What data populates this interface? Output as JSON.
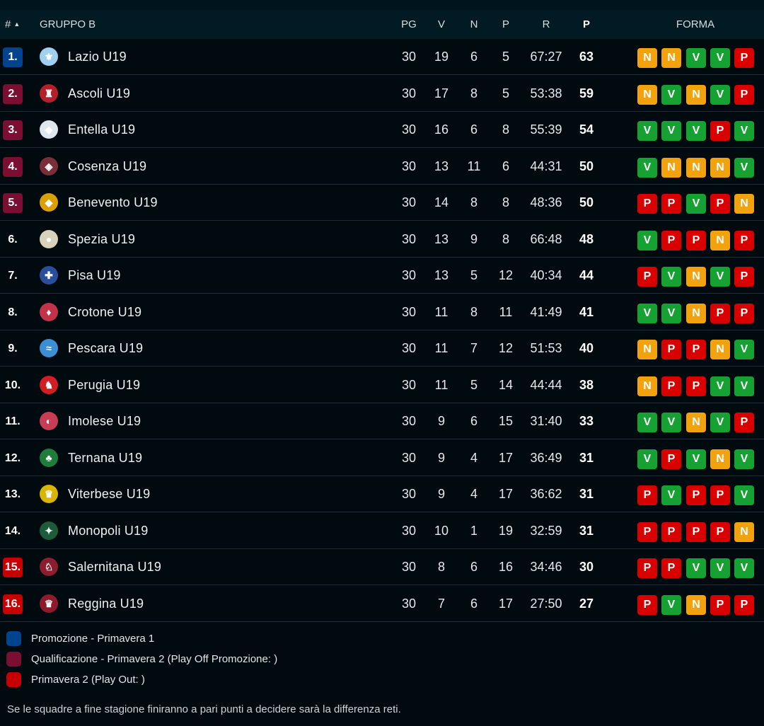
{
  "header": {
    "rank": "#",
    "rank_arrow": "▲",
    "group": "GRUPPO B",
    "cols": [
      "PG",
      "V",
      "N",
      "P",
      "R",
      "P"
    ],
    "form": "FORMA"
  },
  "zone_colors": {
    "promo": "#00448f",
    "qual": "#7a0f33",
    "out": "#c60000",
    "none": "transparent"
  },
  "form_colors": {
    "N": "#f2a20c",
    "V": "#16a133",
    "P": "#d90000"
  },
  "teams": [
    {
      "rank": "1.",
      "zone": "promo",
      "name": "Lazio U19",
      "logo_icon": "lazio-eagle-crest-icon",
      "logo_glyph": "⚜",
      "logo_color": "#9fd0f0",
      "pg": "30",
      "v": "19",
      "n": "6",
      "p": "5",
      "r": "67:27",
      "pts": "63",
      "form": [
        "N",
        "N",
        "V",
        "V",
        "P"
      ]
    },
    {
      "rank": "2.",
      "zone": "qual",
      "name": "Ascoli U19",
      "logo_icon": "ascoli-shield-icon",
      "logo_glyph": "♜",
      "logo_color": "#b3202c",
      "pg": "30",
      "v": "17",
      "n": "8",
      "p": "5",
      "r": "53:38",
      "pts": "59",
      "form": [
        "N",
        "V",
        "N",
        "V",
        "P"
      ]
    },
    {
      "rank": "3.",
      "zone": "qual",
      "name": "Entella U19",
      "logo_icon": "entella-shield-icon",
      "logo_glyph": "◆",
      "logo_color": "#dfe7ef",
      "pg": "30",
      "v": "16",
      "n": "6",
      "p": "8",
      "r": "55:39",
      "pts": "54",
      "form": [
        "V",
        "V",
        "V",
        "P",
        "V"
      ]
    },
    {
      "rank": "4.",
      "zone": "qual",
      "name": "Cosenza U19",
      "logo_icon": "cosenza-shield-icon",
      "logo_glyph": "◈",
      "logo_color": "#7a2e3a",
      "pg": "30",
      "v": "13",
      "n": "11",
      "p": "6",
      "r": "44:31",
      "pts": "50",
      "form": [
        "V",
        "N",
        "N",
        "N",
        "V"
      ]
    },
    {
      "rank": "5.",
      "zone": "qual",
      "name": "Benevento U19",
      "logo_icon": "benevento-shield-icon",
      "logo_glyph": "◆",
      "logo_color": "#d9a000",
      "pg": "30",
      "v": "14",
      "n": "8",
      "p": "8",
      "r": "48:36",
      "pts": "50",
      "form": [
        "P",
        "P",
        "V",
        "P",
        "N"
      ]
    },
    {
      "rank": "6.",
      "zone": "none",
      "name": "Spezia U19",
      "logo_icon": "spezia-round-badge-icon",
      "logo_glyph": "●",
      "logo_color": "#d8d2bd",
      "pg": "30",
      "v": "13",
      "n": "9",
      "p": "8",
      "r": "66:48",
      "pts": "48",
      "form": [
        "V",
        "P",
        "P",
        "N",
        "P"
      ]
    },
    {
      "rank": "7.",
      "zone": "none",
      "name": "Pisa U19",
      "logo_icon": "pisa-shield-icon",
      "logo_glyph": "✚",
      "logo_color": "#2a4f9a",
      "pg": "30",
      "v": "13",
      "n": "5",
      "p": "12",
      "r": "40:34",
      "pts": "44",
      "form": [
        "P",
        "V",
        "N",
        "V",
        "P"
      ]
    },
    {
      "rank": "8.",
      "zone": "none",
      "name": "Crotone U19",
      "logo_icon": "crotone-shield-icon",
      "logo_glyph": "♦",
      "logo_color": "#c2334a",
      "pg": "30",
      "v": "11",
      "n": "8",
      "p": "11",
      "r": "41:49",
      "pts": "41",
      "form": [
        "V",
        "V",
        "N",
        "P",
        "P"
      ]
    },
    {
      "rank": "9.",
      "zone": "none",
      "name": "Pescara U19",
      "logo_icon": "pescara-dolphin-shield-icon",
      "logo_glyph": "≈",
      "logo_color": "#3b8fd4",
      "pg": "30",
      "v": "11",
      "n": "7",
      "p": "12",
      "r": "51:53",
      "pts": "40",
      "form": [
        "N",
        "P",
        "P",
        "N",
        "V"
      ]
    },
    {
      "rank": "10.",
      "zone": "none",
      "name": "Perugia U19",
      "logo_icon": "perugia-griffin-shield-icon",
      "logo_glyph": "♞",
      "logo_color": "#d11d24",
      "pg": "30",
      "v": "11",
      "n": "5",
      "p": "14",
      "r": "44:44",
      "pts": "38",
      "form": [
        "N",
        "P",
        "P",
        "V",
        "V"
      ]
    },
    {
      "rank": "11.",
      "zone": "none",
      "name": "Imolese U19",
      "logo_icon": "imolese-shield-icon",
      "logo_glyph": "◐",
      "logo_color": "#c83c55",
      "pg": "30",
      "v": "9",
      "n": "6",
      "p": "15",
      "r": "31:40",
      "pts": "33",
      "form": [
        "V",
        "V",
        "N",
        "V",
        "P"
      ]
    },
    {
      "rank": "12.",
      "zone": "none",
      "name": "Ternana U19",
      "logo_icon": "ternana-shield-icon",
      "logo_glyph": "♣",
      "logo_color": "#1e7d3a",
      "pg": "30",
      "v": "9",
      "n": "4",
      "p": "17",
      "r": "36:49",
      "pts": "31",
      "form": [
        "V",
        "P",
        "V",
        "N",
        "V"
      ]
    },
    {
      "rank": "13.",
      "zone": "none",
      "name": "Viterbese U19",
      "logo_icon": "viterbese-shield-icon",
      "logo_glyph": "♛",
      "logo_color": "#d9b400",
      "pg": "30",
      "v": "9",
      "n": "4",
      "p": "17",
      "r": "36:62",
      "pts": "31",
      "form": [
        "P",
        "V",
        "P",
        "P",
        "V"
      ]
    },
    {
      "rank": "14.",
      "zone": "none",
      "name": "Monopoli U19",
      "logo_icon": "monopoli-badge-icon",
      "logo_glyph": "✦",
      "logo_color": "#1d5c3a",
      "pg": "30",
      "v": "10",
      "n": "1",
      "p": "19",
      "r": "32:59",
      "pts": "31",
      "form": [
        "P",
        "P",
        "P",
        "P",
        "N"
      ]
    },
    {
      "rank": "15.",
      "zone": "out",
      "name": "Salernitana U19",
      "logo_icon": "salernitana-seahorse-badge-icon",
      "logo_glyph": "♘",
      "logo_color": "#8c1d2e",
      "pg": "30",
      "v": "8",
      "n": "6",
      "p": "16",
      "r": "34:46",
      "pts": "30",
      "form": [
        "P",
        "P",
        "V",
        "V",
        "V"
      ]
    },
    {
      "rank": "16.",
      "zone": "out",
      "name": "Reggina U19",
      "logo_icon": "reggina-shield-icon",
      "logo_glyph": "♛",
      "logo_color": "#8e1a2c",
      "pg": "30",
      "v": "7",
      "n": "6",
      "p": "17",
      "r": "27:50",
      "pts": "27",
      "form": [
        "P",
        "V",
        "N",
        "P",
        "P"
      ]
    }
  ],
  "legend": [
    {
      "zone": "promo",
      "label": "Promozione - Primavera 1"
    },
    {
      "zone": "qual",
      "label": "Qualificazione - Primavera 2 (Play Off Promozione: )"
    },
    {
      "zone": "out",
      "label": "Primavera 2 (Play Out: )"
    }
  ],
  "note": "Se le squadre a fine stagione finiranno a pari punti a decidere sarà la differenza reti."
}
